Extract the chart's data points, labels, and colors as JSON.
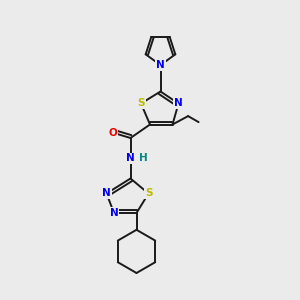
{
  "bg_color": "#ebebeb",
  "bond_color": "#1a1a1a",
  "bond_width": 1.4,
  "atom_colors": {
    "N": "#0000ee",
    "S": "#bbbb00",
    "O": "#ee0000",
    "H": "#008888",
    "C": "#1a1a1a"
  },
  "fig_size": [
    3.0,
    3.0
  ],
  "dpi": 100
}
